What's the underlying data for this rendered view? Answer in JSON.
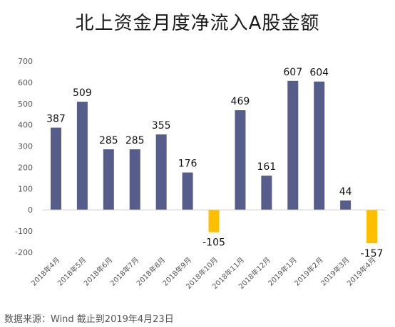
{
  "chart_data": {
    "type": "bar",
    "title": "北上资金月度净流入A股金额",
    "categories": [
      "2018年4月",
      "2018年5月",
      "2018年6月",
      "2018年7月",
      "2018年8月",
      "2018年9月",
      "2018年10月",
      "2018年11月",
      "2018年12月",
      "2019年1月",
      "2019年2月",
      "2019年3月",
      "2019年4月"
    ],
    "values": [
      387,
      509,
      285,
      285,
      355,
      176,
      -105,
      469,
      161,
      607,
      604,
      44,
      -157
    ],
    "data_labels": [
      "387",
      "509",
      "285",
      "285",
      "355",
      "176",
      "-105",
      "469",
      "161",
      "607",
      "604",
      "44",
      "-157"
    ],
    "ylim": [
      -200,
      700
    ],
    "yticks": [
      -200,
      -100,
      0,
      100,
      200,
      300,
      400,
      500,
      600,
      700
    ],
    "ytick_labels": [
      "-200",
      "-100",
      "0",
      "100",
      "200",
      "300",
      "400",
      "500",
      "600",
      "700"
    ],
    "xlabel": "",
    "ylabel": "",
    "grid": false,
    "colors": {
      "positive": "#565d8b",
      "negative": "#ffbf00",
      "axis": "#cccccc"
    }
  },
  "footer": {
    "source": "数据来源：Wind  截止到2019年4月23日"
  }
}
